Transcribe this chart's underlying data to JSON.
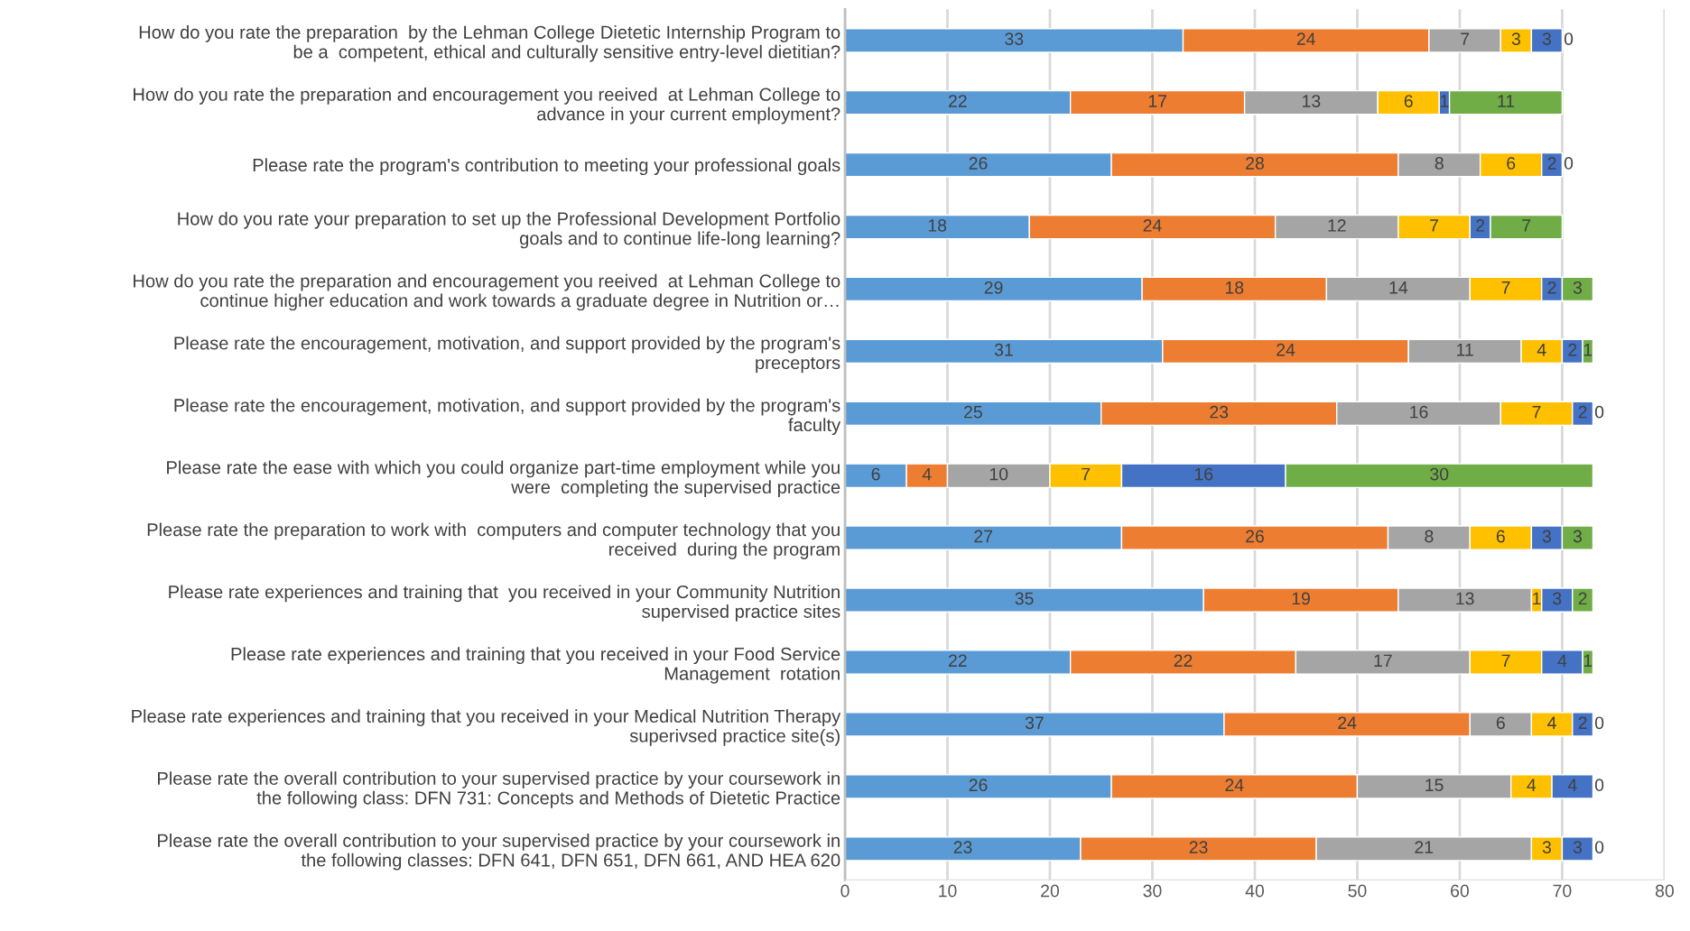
{
  "chart_data": {
    "type": "bar",
    "orientation": "horizontal",
    "stacked": true,
    "data_labels": true,
    "grid": "x",
    "legend": false,
    "categories": [
      "How do you rate the preparation  by the Lehman College Dietetic Internship Program to\nbe a  competent, ethical and culturally sensitive entry-level dietitian?",
      "How do you rate the preparation and encouragement you reeived  at Lehman College to\nadvance in your current employment?",
      "Please rate the program's contribution to meeting your professional goals",
      "How do you rate your preparation to set up the Professional Development Portfolio\ngoals and to continue life-long learning?",
      "How do you rate the preparation and encouragement you reeived  at Lehman College to\ncontinue higher education and work towards a graduate degree in Nutrition or…",
      "Please rate the encouragement, motivation, and support provided by the program's\npreceptors",
      "Please rate the encouragement, motivation, and support provided by the program's\nfaculty",
      "Please rate the ease with which you could organize part-time employment while you\nwere  completing the supervised practice",
      "Please rate the preparation to work with  computers and computer technology that you\nreceived  during the program",
      "Please rate experiences and training that  you received in your Community Nutrition\nsupervised practice sites",
      "Please rate experiences and training that you received in your Food Service\nManagement  rotation",
      "Please rate experiences and training that you received in your Medical Nutrition Therapy\nsuperivsed practice site(s)",
      "Please rate the overall contribution to your supervised practice by your coursework in\nthe following class: DFN 731: Concepts and Methods of Dietetic Practice",
      "Please rate the overall contribution to your supervised practice by your coursework in\nthe following classes: DFN 641, DFN 651, DFN 661, AND HEA 620"
    ],
    "series": [
      {
        "color": "#5b9bd5",
        "values": [
          33,
          22,
          26,
          18,
          29,
          31,
          25,
          6,
          27,
          35,
          22,
          37,
          26,
          23
        ]
      },
      {
        "color": "#ed7d31",
        "values": [
          24,
          17,
          28,
          24,
          18,
          24,
          23,
          4,
          26,
          19,
          22,
          24,
          24,
          23
        ]
      },
      {
        "color": "#a5a5a5",
        "values": [
          7,
          13,
          8,
          12,
          14,
          11,
          16,
          10,
          8,
          13,
          17,
          6,
          15,
          21
        ]
      },
      {
        "color": "#ffc000",
        "values": [
          3,
          6,
          6,
          7,
          7,
          4,
          7,
          7,
          6,
          1,
          7,
          4,
          4,
          3
        ]
      },
      {
        "color": "#4472c4",
        "values": [
          3,
          1,
          2,
          2,
          2,
          2,
          2,
          16,
          3,
          3,
          4,
          2,
          4,
          3
        ]
      },
      {
        "color": "#70ad47",
        "values": [
          0,
          11,
          0,
          7,
          3,
          1,
          0,
          30,
          3,
          2,
          1,
          0,
          0,
          0
        ]
      }
    ],
    "xlim": [
      0,
      80
    ],
    "xticks": [
      0,
      10,
      20,
      30,
      40,
      50,
      60,
      70,
      80
    ]
  }
}
